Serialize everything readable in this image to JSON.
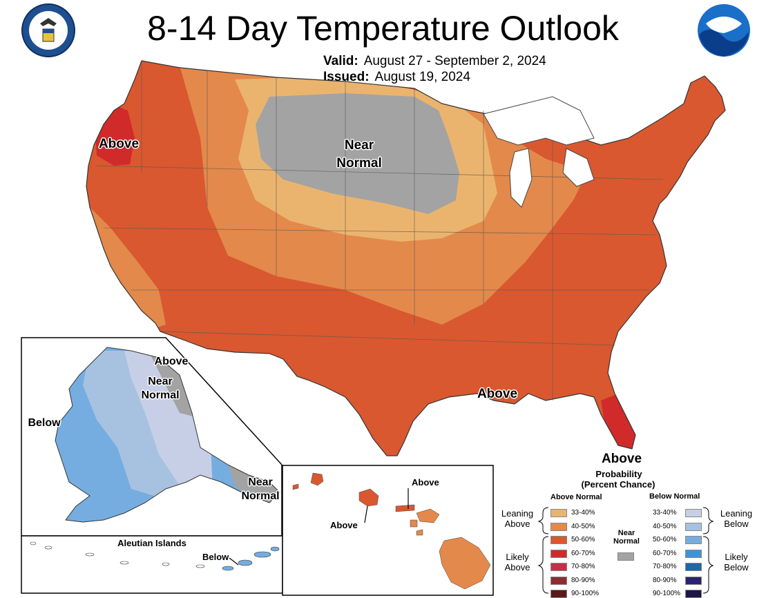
{
  "title": "8-14 Day Temperature Outlook",
  "valid_label": "Valid:",
  "valid_value": "August 27 - September 2, 2024",
  "issued_label": "Issued:",
  "issued_value": "August 19, 2024",
  "colors": {
    "above_33_40": "#ebb46e",
    "above_40_50": "#e3894b",
    "above_50_60": "#d9582f",
    "above_60_70": "#d02a2a",
    "above_70_80": "#c72d47",
    "above_80_90": "#8e2b34",
    "above_90_100": "#5c1a1b",
    "near_normal": "#a3a3a3",
    "below_33_40": "#c7cfe6",
    "below_40_50": "#a7c2e0",
    "below_50_60": "#76ade0",
    "below_60_70": "#3d95d8",
    "below_70_80": "#1b67ac",
    "below_80_90": "#2a2370",
    "below_90_100": "#1d1646"
  },
  "conus": {
    "label_above_west": "Above",
    "label_near_normal_1": "Near",
    "label_near_normal_2": "Normal",
    "label_above_south": "Above",
    "label_above_east": "Above"
  },
  "alaska": {
    "label_above": "Above",
    "label_near_1": "Near",
    "label_near_2": "Normal",
    "label_below": "Below",
    "label_se_near_1": "Near",
    "label_se_near_2": "Normal"
  },
  "aleutians": {
    "title": "Aleutian Islands",
    "label_below": "Below"
  },
  "hawaii": {
    "label_above_1": "Above",
    "label_above_2": "Above"
  },
  "legend": {
    "title_1": "Probability",
    "title_2": "(Percent Chance)",
    "above_header": "Above Normal",
    "below_header": "Below Normal",
    "near_1": "Near",
    "near_2": "Normal",
    "leaning_above_1": "Leaning",
    "leaning_above_2": "Above",
    "likely_above_1": "Likely",
    "likely_above_2": "Above",
    "leaning_below_1": "Leaning",
    "leaning_below_2": "Below",
    "likely_below_1": "Likely",
    "likely_below_2": "Below",
    "ranges": [
      "33-40%",
      "40-50%",
      "50-60%",
      "60-70%",
      "70-80%",
      "80-90%",
      "90-100%"
    ]
  }
}
